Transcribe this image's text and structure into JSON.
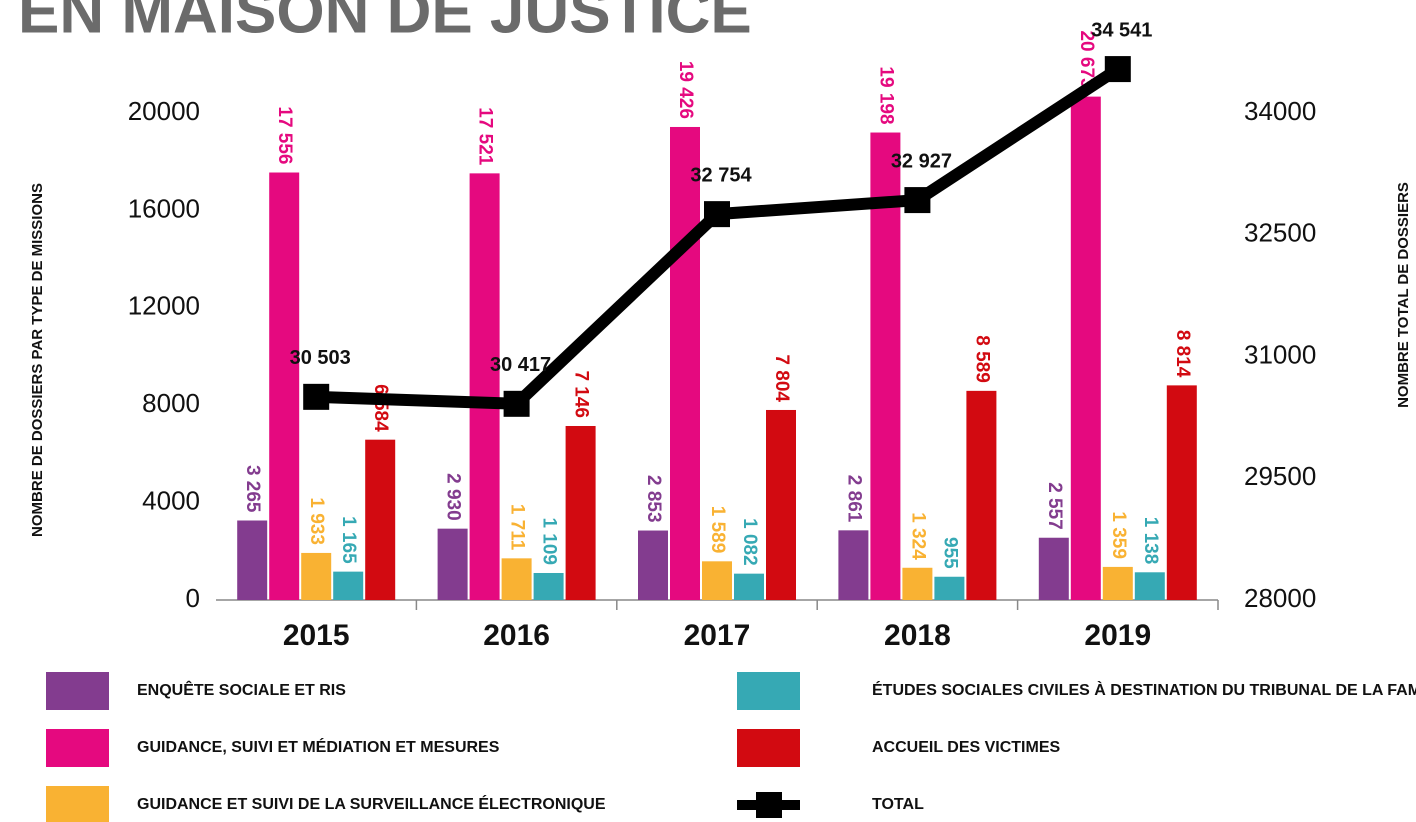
{
  "chart_data": {
    "type": "bar",
    "title": "EN MAISON DE JUSTICE",
    "y_label": "NOMBRE DE DOSSIERS PAR TYPE DE MISSIONS",
    "y2_label": "NOMBRE TOTAL DE DOSSIERS",
    "categories": [
      "2015",
      "2016",
      "2017",
      "2018",
      "2019"
    ],
    "ylim": [
      0,
      20000
    ],
    "yticks": [
      0,
      4000,
      8000,
      12000,
      16000,
      20000
    ],
    "y2lim": [
      28000,
      34000
    ],
    "y2ticks": [
      28000,
      29500,
      31000,
      32500,
      34000
    ],
    "grid": false,
    "series": [
      {
        "name": "ENQUÊTE SOCIALE ET RIS",
        "color": "#833c8f",
        "values": [
          3265,
          2930,
          2853,
          2861,
          2557
        ],
        "value_labels": [
          "3 265",
          "2 930",
          "2 853",
          "2 861",
          "2 557"
        ]
      },
      {
        "name": "GUIDANCE, SUIVI ET MÉDIATION ET MESURES",
        "color": "#e5097f",
        "values": [
          17556,
          17521,
          19426,
          19198,
          20673
        ],
        "value_labels": [
          "17 556",
          "17 521",
          "19 426",
          "19 198",
          "20 673"
        ]
      },
      {
        "name": "GUIDANCE ET SUIVI DE LA SURVEILLANCE ÉLECTRONIQUE",
        "color": "#f9b233",
        "values": [
          1933,
          1711,
          1589,
          1324,
          1359
        ],
        "value_labels": [
          "1 933",
          "1 711",
          "1 589",
          "1 324",
          "1 359"
        ]
      },
      {
        "name": "ÉTUDES SOCIALES CIVILES À DESTINATION DU TRIBUNAL DE LA FAMILLE",
        "color": "#36a9b4",
        "values": [
          1165,
          1109,
          1082,
          955,
          1138
        ],
        "value_labels": [
          "1 165",
          "1 109",
          "1 082",
          "955",
          "1 138"
        ]
      },
      {
        "name": "ACCUEIL DES VICTIMES",
        "color": "#d20a11",
        "values": [
          6584,
          7146,
          7804,
          8589,
          8814
        ],
        "value_labels": [
          "6 584",
          "7 146",
          "7 804",
          "8 589",
          "8 814"
        ]
      },
      {
        "name": "TOTAL",
        "color": "#000000",
        "type": "line",
        "axis": "y2",
        "values": [
          30503,
          30417,
          32754,
          32927,
          34541
        ],
        "value_labels": [
          "30 503",
          "30 417",
          "32 754",
          "32 927",
          "34 541"
        ]
      }
    ]
  }
}
